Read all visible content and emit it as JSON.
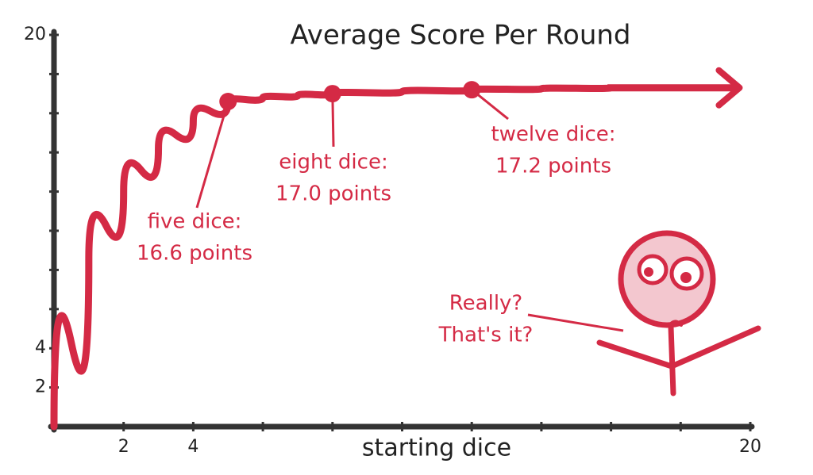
{
  "chart_data": {
    "type": "line",
    "title": "Average Score Per Round",
    "xlabel": "starting dice",
    "xlim": [
      0,
      20
    ],
    "ylim": [
      0,
      20
    ],
    "xticks": [
      2,
      4,
      20
    ],
    "yticks": [
      2,
      4,
      20
    ],
    "xminorticks": [
      6,
      8,
      10,
      12,
      14,
      16,
      18
    ],
    "yminorticks": [
      6,
      8,
      10,
      12,
      14,
      16,
      18
    ],
    "color": "#d42a45",
    "axis_color": "#333333",
    "series": [
      {
        "x": [
          0,
          1,
          2,
          3,
          4,
          5,
          6,
          7,
          8,
          10,
          12,
          14,
          16,
          18,
          19.6
        ],
        "values": [
          0,
          8.5,
          12,
          14.2,
          15.6,
          16.6,
          16.8,
          16.9,
          17.0,
          17.1,
          17.2,
          17.25,
          17.3,
          17.3,
          17.3
        ]
      }
    ],
    "annotations": [
      {
        "x": 5,
        "y": 16.6,
        "lines": [
          "five dice:",
          "16.6 points"
        ]
      },
      {
        "x": 8,
        "y": 17.0,
        "lines": [
          "eight dice:",
          "17.0 points"
        ]
      },
      {
        "x": 12,
        "y": 17.2,
        "lines": [
          "twelve dice:",
          "17.2 points"
        ]
      }
    ],
    "speech": [
      "Really?",
      "That's it?"
    ]
  }
}
